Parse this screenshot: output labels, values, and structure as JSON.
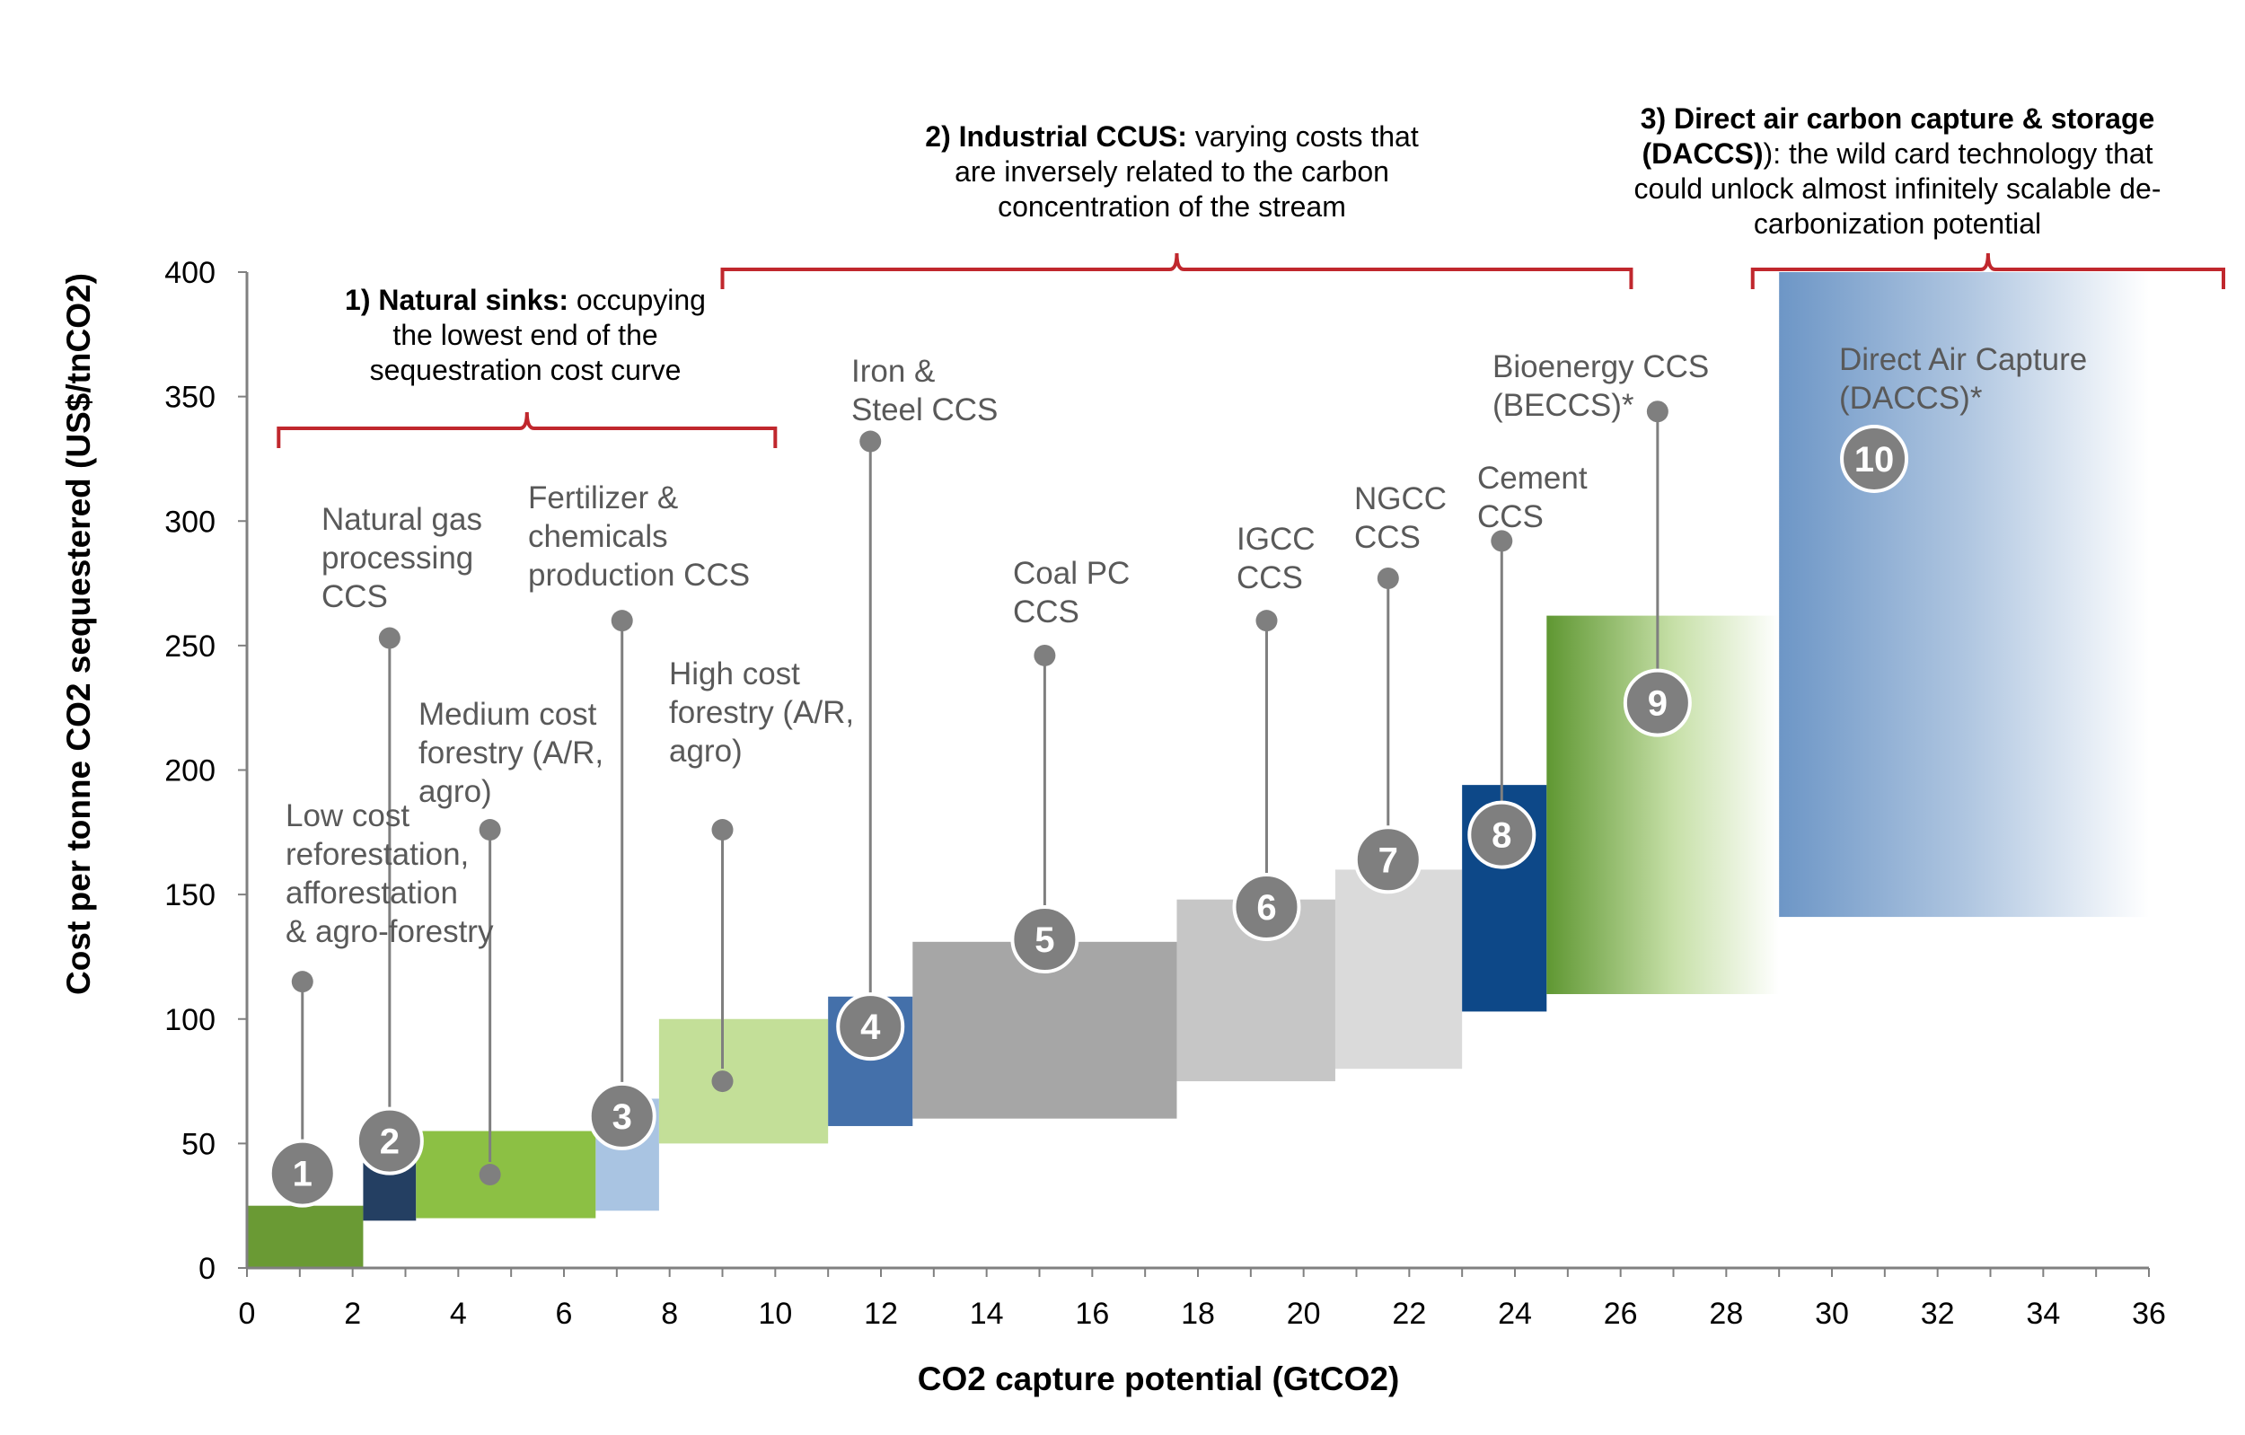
{
  "chart_data": {
    "type": "bar",
    "subtype": "marginal-abatement-cost-curve",
    "xlabel": "CO2 capture potential (GtCO2)",
    "ylabel": "Cost per tonne CO2 sequestered (US$/tnCO2)",
    "xlim": [
      0,
      36
    ],
    "ylim": [
      0,
      400
    ],
    "x_ticks": [
      "0",
      "2",
      "4",
      "6",
      "8",
      "10",
      "12",
      "14",
      "16",
      "18",
      "20",
      "22",
      "24",
      "26",
      "28",
      "30",
      "32",
      "34",
      "36"
    ],
    "y_ticks": [
      "0",
      "50",
      "100",
      "150",
      "200",
      "250",
      "300",
      "350",
      "400"
    ],
    "grid": false,
    "bars": [
      {
        "id": "1",
        "label": [
          "Low cost",
          "reforestation,",
          "afforestation",
          "& agro-forestry"
        ],
        "x0": 0,
        "x1": 2.2,
        "y0": 0,
        "y1": 25,
        "marker_y": 115,
        "badge_y": 38,
        "color": "#6a9a34"
      },
      {
        "id": "2",
        "label": [
          "Natural gas",
          "processing",
          "CCS"
        ],
        "x0": 2.2,
        "x1": 3.2,
        "y0": 19,
        "y1": 44,
        "marker_y": 253,
        "badge_y": 51,
        "color": "#243f62"
      },
      {
        "id": "3",
        "label": [
          "Fertilizer &",
          "chemicals",
          "production CCS"
        ],
        "x0": 6.6,
        "x1": 7.8,
        "y0": 23,
        "y1": 68,
        "marker_y": 260,
        "badge_y": 61,
        "color": "#a9c4e2"
      },
      {
        "id": "M",
        "label": [
          "Medium cost",
          "forestry (A/R,",
          "agro)"
        ],
        "x0": 3.2,
        "x1": 6.6,
        "y0": 20,
        "y1": 55,
        "marker_y": 176,
        "badge_y": null,
        "color": "#8cc044"
      },
      {
        "id": "H",
        "label": [
          "High cost",
          "forestry (A/R,",
          "agro)"
        ],
        "x0": 7.8,
        "x1": 11,
        "y0": 50,
        "y1": 100,
        "marker_y": 176,
        "badge_y": null,
        "color": "#c3df98"
      },
      {
        "id": "4",
        "label": [
          "Iron &",
          "Steel CCS"
        ],
        "x0": 11,
        "x1": 12.6,
        "y0": 57,
        "y1": 109,
        "marker_y": 332,
        "badge_y": 97,
        "color": "#4470aa"
      },
      {
        "id": "5",
        "label": [
          "Coal PC",
          "CCS"
        ],
        "x0": 12.6,
        "x1": 17.6,
        "y0": 60,
        "y1": 131,
        "marker_y": 246,
        "badge_y": 132,
        "color": "#a6a6a6"
      },
      {
        "id": "6",
        "label": [
          "IGCC",
          "CCS"
        ],
        "x0": 17.6,
        "x1": 20.6,
        "y0": 75,
        "y1": 148,
        "marker_y": 260,
        "badge_y": 145,
        "color": "#c6c6c6"
      },
      {
        "id": "7",
        "label": [
          "NGCC",
          "CCS"
        ],
        "x0": 20.6,
        "x1": 23,
        "y0": 80,
        "y1": 160,
        "marker_y": 277,
        "badge_y": 164,
        "color": "#dadada"
      },
      {
        "id": "8",
        "label": [
          "Cement",
          "CCS"
        ],
        "x0": 23,
        "x1": 24.6,
        "y0": 103,
        "y1": 194,
        "marker_y": 292,
        "badge_y": 174,
        "color": "#0d4888"
      },
      {
        "id": "9",
        "label": [
          "Bioenergy CCS",
          "(BECCS)*"
        ],
        "x0": 24.6,
        "x1": 29,
        "y0": 110,
        "y1": 262,
        "marker_y": 344,
        "badge_y": 227,
        "color": "#5f9732"
      },
      {
        "id": "10",
        "label": [
          "Direct Air Capture",
          "(DACCS)*"
        ],
        "x0": 29,
        "x1": 36,
        "y0": 141,
        "y1": 400,
        "marker_y": null,
        "badge_y": 325,
        "color": "#6d96c6"
      }
    ],
    "groups": [
      {
        "bold": "1) Natural sinks:",
        "text": [
          "occupying",
          "the lowest end of the",
          "sequestration cost curve"
        ],
        "x0": 0.6,
        "x1": 10,
        "color": "#c0272d"
      },
      {
        "bold": "2) Industrial CCUS:",
        "text": [
          "varying costs that",
          "are inversely related to the carbon",
          "concentration of the stream"
        ],
        "x0": 9,
        "x1": 26.2,
        "color": "#c0272d"
      },
      {
        "bold": "3) Direct air carbon capture & storage",
        "bold2": "(DACCS)",
        "text": [
          "",
          "): the wild card technology that",
          "could unlock almost infinitely scalable de-",
          "carbonization potential"
        ],
        "x0": 28.5,
        "x1": 37.5,
        "color": "#c0272d"
      }
    ],
    "colors": {
      "marker": "#7f7f7f",
      "bracket": "#c0272d",
      "axis": "#808080"
    }
  }
}
